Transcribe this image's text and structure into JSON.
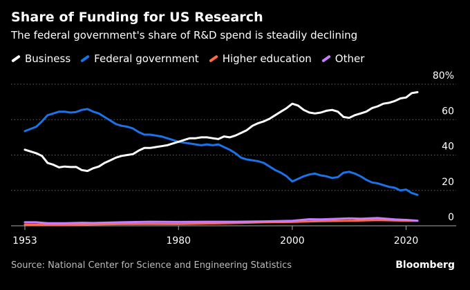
{
  "header": {
    "title": "Share of Funding for US Research",
    "subtitle": "The federal government's share of R&D spend is steadily declining"
  },
  "footer": {
    "source": "Source: National Center for Science and Engineering Statistics",
    "brand": "Bloomberg"
  },
  "colors": {
    "background": "#000000",
    "business": "#ffffff",
    "federal": "#1a73e8",
    "higher_education": "#ff6b4a",
    "other": "#c77dff",
    "grid": "#666666"
  },
  "chart_data": {
    "type": "line",
    "title": "Share of Funding for US Research",
    "subtitle": "The federal government's share of R&D spend is steadily declining",
    "xlabel": "",
    "ylabel": "",
    "xlim": [
      1953,
      2022
    ],
    "ylim": [
      0,
      80
    ],
    "y_unit_suffix": "%",
    "y_ticks": [
      0,
      20,
      40,
      60,
      80
    ],
    "y_tick_labels": [
      "0",
      "20",
      "40",
      "60",
      "80%"
    ],
    "x_tick_labels": [
      "1953",
      "1980",
      "2000",
      "2020"
    ],
    "x_ticks": [
      1953,
      1980,
      2000,
      2020
    ],
    "grid": "horizontal dotted",
    "legend_position": "top",
    "series": [
      {
        "name": "Business",
        "color": "#ffffff",
        "points": [
          [
            1953,
            43.0
          ],
          [
            1955,
            41.0
          ],
          [
            1956,
            39.5
          ],
          [
            1957,
            35.5
          ],
          [
            1958,
            34.5
          ],
          [
            1959,
            33.0
          ],
          [
            1960,
            33.5
          ],
          [
            1961,
            33.2
          ],
          [
            1962,
            33.3
          ],
          [
            1963,
            31.5
          ],
          [
            1964,
            31.0
          ],
          [
            1965,
            32.5
          ],
          [
            1966,
            33.5
          ],
          [
            1967,
            35.5
          ],
          [
            1968,
            37.0
          ],
          [
            1969,
            38.5
          ],
          [
            1970,
            39.5
          ],
          [
            1971,
            40.0
          ],
          [
            1972,
            40.5
          ],
          [
            1973,
            42.5
          ],
          [
            1974,
            44.0
          ],
          [
            1975,
            44.0
          ],
          [
            1976,
            44.5
          ],
          [
            1977,
            45.0
          ],
          [
            1978,
            45.5
          ],
          [
            1979,
            46.5
          ],
          [
            1980,
            47.5
          ],
          [
            1981,
            48.5
          ],
          [
            1982,
            49.5
          ],
          [
            1983,
            49.5
          ],
          [
            1984,
            50.0
          ],
          [
            1985,
            50.0
          ],
          [
            1986,
            49.5
          ],
          [
            1987,
            49.0
          ],
          [
            1988,
            50.5
          ],
          [
            1989,
            50.0
          ],
          [
            1990,
            51.0
          ],
          [
            1991,
            52.5
          ],
          [
            1992,
            54.0
          ],
          [
            1993,
            56.5
          ],
          [
            1994,
            58.0
          ],
          [
            1995,
            59.0
          ],
          [
            1996,
            60.5
          ],
          [
            1997,
            62.5
          ],
          [
            1998,
            64.5
          ],
          [
            1999,
            66.5
          ],
          [
            2000,
            69.0
          ],
          [
            2001,
            68.0
          ],
          [
            2002,
            65.5
          ],
          [
            2003,
            64.0
          ],
          [
            2004,
            63.5
          ],
          [
            2005,
            64.0
          ],
          [
            2006,
            65.0
          ],
          [
            2007,
            65.5
          ],
          [
            2008,
            64.5
          ],
          [
            2009,
            61.5
          ],
          [
            2010,
            61.0
          ],
          [
            2011,
            62.5
          ],
          [
            2012,
            63.5
          ],
          [
            2013,
            64.5
          ],
          [
            2014,
            66.5
          ],
          [
            2015,
            67.5
          ],
          [
            2016,
            69.0
          ],
          [
            2017,
            69.5
          ],
          [
            2018,
            70.5
          ],
          [
            2019,
            72.0
          ],
          [
            2020,
            72.5
          ],
          [
            2021,
            75.0
          ],
          [
            2022,
            75.5
          ]
        ]
      },
      {
        "name": "Federal government",
        "color": "#1a73e8",
        "points": [
          [
            1953,
            53.5
          ],
          [
            1955,
            56.0
          ],
          [
            1956,
            59.0
          ],
          [
            1957,
            62.5
          ],
          [
            1958,
            63.5
          ],
          [
            1959,
            64.5
          ],
          [
            1960,
            64.5
          ],
          [
            1961,
            64.0
          ],
          [
            1962,
            64.3
          ],
          [
            1963,
            65.5
          ],
          [
            1964,
            66.0
          ],
          [
            1965,
            64.5
          ],
          [
            1966,
            63.5
          ],
          [
            1967,
            61.5
          ],
          [
            1968,
            59.5
          ],
          [
            1969,
            57.5
          ],
          [
            1970,
            56.5
          ],
          [
            1971,
            56.0
          ],
          [
            1972,
            55.0
          ],
          [
            1973,
            53.0
          ],
          [
            1974,
            51.5
          ],
          [
            1975,
            51.5
          ],
          [
            1976,
            51.0
          ],
          [
            1977,
            50.5
          ],
          [
            1978,
            49.5
          ],
          [
            1979,
            48.5
          ],
          [
            1980,
            47.5
          ],
          [
            1981,
            47.0
          ],
          [
            1982,
            46.5
          ],
          [
            1983,
            46.0
          ],
          [
            1984,
            45.5
          ],
          [
            1985,
            46.0
          ],
          [
            1986,
            45.5
          ],
          [
            1987,
            46.0
          ],
          [
            1988,
            44.5
          ],
          [
            1989,
            43.0
          ],
          [
            1990,
            41.0
          ],
          [
            1991,
            38.5
          ],
          [
            1992,
            37.5
          ],
          [
            1993,
            37.0
          ],
          [
            1994,
            36.5
          ],
          [
            1995,
            35.5
          ],
          [
            1996,
            33.5
          ],
          [
            1997,
            31.5
          ],
          [
            1998,
            30.0
          ],
          [
            1999,
            28.0
          ],
          [
            2000,
            25.0
          ],
          [
            2001,
            26.5
          ],
          [
            2002,
            28.0
          ],
          [
            2003,
            29.0
          ],
          [
            2004,
            29.5
          ],
          [
            2005,
            28.5
          ],
          [
            2006,
            28.0
          ],
          [
            2007,
            27.0
          ],
          [
            2008,
            27.5
          ],
          [
            2009,
            30.0
          ],
          [
            2010,
            30.5
          ],
          [
            2011,
            29.5
          ],
          [
            2012,
            28.0
          ],
          [
            2013,
            26.0
          ],
          [
            2014,
            24.5
          ],
          [
            2015,
            24.0
          ],
          [
            2016,
            23.0
          ],
          [
            2017,
            22.0
          ],
          [
            2018,
            21.5
          ],
          [
            2019,
            20.0
          ],
          [
            2020,
            20.5
          ],
          [
            2021,
            18.5
          ],
          [
            2022,
            17.5
          ]
        ]
      },
      {
        "name": "Higher education",
        "color": "#ff6b4a",
        "points": [
          [
            1953,
            0.7
          ],
          [
            1960,
            0.6
          ],
          [
            1965,
            0.8
          ],
          [
            1970,
            1.0
          ],
          [
            1975,
            1.1
          ],
          [
            1980,
            1.0
          ],
          [
            1985,
            1.3
          ],
          [
            1990,
            1.6
          ],
          [
            1995,
            2.0
          ],
          [
            2000,
            2.2
          ],
          [
            2005,
            2.6
          ],
          [
            2010,
            2.8
          ],
          [
            2015,
            3.2
          ],
          [
            2020,
            2.9
          ],
          [
            2022,
            2.8
          ]
        ]
      },
      {
        "name": "Other",
        "color": "#c77dff",
        "points": [
          [
            1953,
            2.0
          ],
          [
            1955,
            2.0
          ],
          [
            1957,
            1.5
          ],
          [
            1960,
            1.5
          ],
          [
            1963,
            1.7
          ],
          [
            1965,
            1.6
          ],
          [
            1970,
            2.0
          ],
          [
            1975,
            2.3
          ],
          [
            1980,
            2.2
          ],
          [
            1985,
            2.3
          ],
          [
            1990,
            2.3
          ],
          [
            1995,
            2.5
          ],
          [
            2000,
            2.8
          ],
          [
            2003,
            3.7
          ],
          [
            2005,
            3.6
          ],
          [
            2010,
            4.2
          ],
          [
            2012,
            4.0
          ],
          [
            2015,
            4.4
          ],
          [
            2018,
            3.6
          ],
          [
            2020,
            3.3
          ],
          [
            2022,
            2.9
          ]
        ]
      }
    ]
  }
}
